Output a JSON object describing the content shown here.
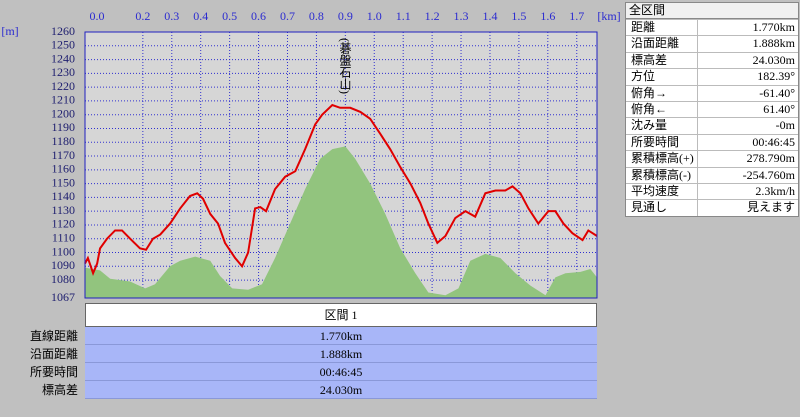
{
  "chart_data": {
    "type": "profile",
    "xlabel": "[km]",
    "ylabel": "[m]",
    "annotation": "(碁盤石山)",
    "xlim": [
      0,
      1.77
    ],
    "ylim": [
      1067,
      1260
    ],
    "xticks": [
      {
        "value": 0,
        "label": "0.0"
      },
      0.2,
      0.3,
      0.4,
      0.5,
      0.6,
      0.7,
      0.8,
      0.9,
      {
        "value": 1,
        "label": "1.0"
      },
      1.1,
      1.2,
      1.3,
      1.4,
      1.5,
      1.6,
      1.7
    ],
    "yticks": [
      1067,
      1080,
      1090,
      1100,
      1110,
      1120,
      1130,
      1140,
      1150,
      1160,
      1170,
      1180,
      1190,
      1200,
      1210,
      1220,
      1230,
      1240,
      1250,
      1260
    ],
    "grid": true,
    "series": [
      {
        "type": "area",
        "color": "#92c47e",
        "x": [
          0,
          0.052,
          0.087,
          0.156,
          0.208,
          0.242,
          0.294,
          0.329,
          0.381,
          0.433,
          0.467,
          0.509,
          0.564,
          0.612,
          0.657,
          0.709,
          0.761,
          0.813,
          0.855,
          0.9,
          0.934,
          0.986,
          1.038,
          1.09,
          1.142,
          1.187,
          1.246,
          1.291,
          1.332,
          1.384,
          1.436,
          1.488,
          1.54,
          1.592,
          1.626,
          1.661,
          1.713,
          1.747,
          1.77
        ],
        "values": [
          1089,
          1087,
          1081,
          1079,
          1074,
          1077,
          1090,
          1094,
          1097,
          1094,
          1083,
          1074,
          1073,
          1077,
          1096,
          1121,
          1146,
          1168,
          1175,
          1177,
          1168,
          1150,
          1128,
          1103,
          1085,
          1071,
          1069,
          1074,
          1094,
          1099,
          1096,
          1085,
          1076,
          1069,
          1082,
          1085,
          1086,
          1088,
          1082
        ]
      },
      {
        "type": "line",
        "color": "#e00000",
        "x": [
          0,
          0.01,
          0.028,
          0.042,
          0.052,
          0.076,
          0.104,
          0.128,
          0.156,
          0.19,
          0.211,
          0.235,
          0.26,
          0.294,
          0.329,
          0.363,
          0.388,
          0.408,
          0.433,
          0.46,
          0.484,
          0.519,
          0.543,
          0.564,
          0.588,
          0.606,
          0.626,
          0.657,
          0.692,
          0.727,
          0.761,
          0.796,
          0.82,
          0.855,
          0.882,
          0.917,
          0.952,
          0.986,
          1.021,
          1.055,
          1.09,
          1.125,
          1.159,
          1.187,
          1.218,
          1.246,
          1.28,
          1.315,
          1.349,
          1.384,
          1.419,
          1.453,
          1.478,
          1.505,
          1.533,
          1.567,
          1.602,
          1.626,
          1.654,
          1.685,
          1.72,
          1.74,
          1.77
        ],
        "values": [
          1092,
          1096,
          1085,
          1092,
          1103,
          1110,
          1116,
          1116,
          1110,
          1103,
          1102,
          1110,
          1113,
          1121,
          1132,
          1141,
          1143,
          1139,
          1128,
          1121,
          1107,
          1096,
          1090,
          1100,
          1132,
          1133,
          1130,
          1146,
          1155,
          1159,
          1175,
          1193,
          1200,
          1207,
          1205,
          1205,
          1202,
          1197,
          1186,
          1175,
          1162,
          1150,
          1136,
          1121,
          1107,
          1112,
          1125,
          1130,
          1126,
          1143,
          1145,
          1145,
          1148,
          1143,
          1132,
          1121,
          1130,
          1130,
          1121,
          1114,
          1109,
          1116,
          1112
        ]
      }
    ]
  },
  "summary": {
    "title": "全区間",
    "rows": [
      [
        "距離",
        "1.770km"
      ],
      [
        "沿面距離",
        "1.888km"
      ],
      [
        "標高差",
        "24.030m"
      ],
      [
        "方位",
        "182.39°"
      ],
      [
        "俯角→",
        "-61.40°"
      ],
      [
        "俯角←",
        "61.40°"
      ],
      [
        "沈み量",
        "-0m"
      ],
      [
        "所要時間",
        "00:46:45"
      ],
      [
        "累積標高(+)",
        "278.790m"
      ],
      [
        "累積標高(-)",
        "-254.760m"
      ],
      [
        "平均速度",
        "2.3km/h"
      ],
      [
        "見通し",
        "見えます"
      ]
    ]
  },
  "section": {
    "title": "区間 1",
    "rows": [
      [
        "直線距離",
        "1.770km"
      ],
      [
        "沿面距離",
        "1.888km"
      ],
      [
        "所要時間",
        "00:46:45"
      ],
      [
        "標高差",
        "24.030m"
      ]
    ]
  }
}
